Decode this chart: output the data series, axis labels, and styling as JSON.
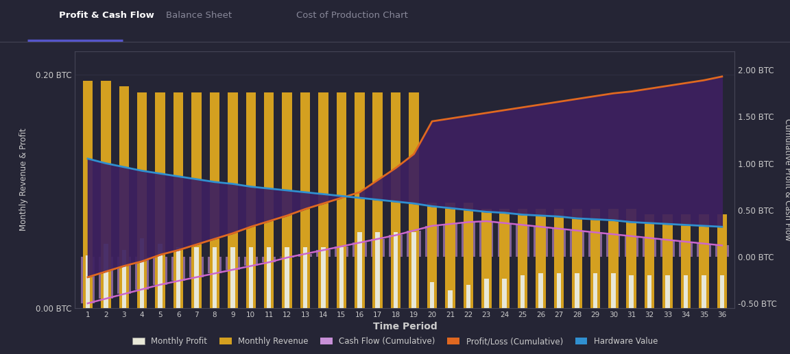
{
  "background_color": "#252535",
  "plot_bg_color": "#252535",
  "title_tabs": [
    "Profit & Cash Flow",
    "Balance Sheet",
    "Cost of Production Chart"
  ],
  "xlabel": "Time Period",
  "ylabel_left": "Monthly Revenue & Profit",
  "ylabel_right": "Cumulative Profit & Cash Flow",
  "periods": [
    1,
    2,
    3,
    4,
    5,
    6,
    7,
    8,
    9,
    10,
    11,
    12,
    13,
    14,
    15,
    16,
    17,
    18,
    19,
    20,
    21,
    22,
    23,
    24,
    25,
    26,
    27,
    28,
    29,
    30,
    31,
    32,
    33,
    34,
    35,
    36
  ],
  "ylim_left": [
    0.0,
    0.22
  ],
  "ylim_right": [
    -0.55,
    2.2
  ],
  "yticks_left": [
    0.0,
    0.2
  ],
  "yticks_right": [
    -0.5,
    0.0,
    0.5,
    1.0,
    1.5,
    2.0
  ],
  "monthly_revenue": [
    0.195,
    0.195,
    0.19,
    0.185,
    0.185,
    0.185,
    0.185,
    0.185,
    0.185,
    0.185,
    0.185,
    0.185,
    0.185,
    0.185,
    0.185,
    0.185,
    0.185,
    0.185,
    0.185,
    0.09,
    0.09,
    0.09,
    0.085,
    0.085,
    0.085,
    0.085,
    0.085,
    0.085,
    0.085,
    0.085,
    0.085,
    0.08,
    0.08,
    0.08,
    0.08,
    0.08
  ],
  "monthly_profit": [
    0.045,
    0.055,
    0.05,
    0.06,
    0.055,
    0.052,
    0.052,
    0.052,
    0.052,
    0.052,
    0.052,
    0.052,
    0.052,
    0.052,
    0.052,
    0.065,
    0.065,
    0.065,
    0.065,
    0.022,
    0.015,
    0.02,
    0.025,
    0.025,
    0.028,
    0.03,
    0.03,
    0.03,
    0.03,
    0.03,
    0.028,
    0.028,
    0.028,
    0.028,
    0.028,
    0.028
  ],
  "cash_flow_cumulative": [
    -0.5,
    -0.45,
    -0.4,
    -0.35,
    -0.3,
    -0.26,
    -0.22,
    -0.18,
    -0.14,
    -0.1,
    -0.06,
    -0.01,
    0.03,
    0.07,
    0.11,
    0.15,
    0.19,
    0.23,
    0.28,
    0.33,
    0.35,
    0.37,
    0.38,
    0.36,
    0.34,
    0.32,
    0.3,
    0.28,
    0.26,
    0.24,
    0.22,
    0.2,
    0.18,
    0.16,
    0.14,
    0.12
  ],
  "profit_loss_cumulative": [
    -0.22,
    -0.16,
    -0.1,
    -0.05,
    0.02,
    0.07,
    0.13,
    0.19,
    0.25,
    0.32,
    0.38,
    0.44,
    0.51,
    0.57,
    0.63,
    0.69,
    0.82,
    0.95,
    1.1,
    1.45,
    1.48,
    1.51,
    1.54,
    1.57,
    1.6,
    1.63,
    1.66,
    1.69,
    1.72,
    1.75,
    1.77,
    1.8,
    1.83,
    1.86,
    1.89,
    1.93
  ],
  "hardware_value": [
    1.05,
    1.0,
    0.96,
    0.92,
    0.89,
    0.86,
    0.83,
    0.8,
    0.78,
    0.75,
    0.73,
    0.71,
    0.69,
    0.67,
    0.65,
    0.63,
    0.61,
    0.59,
    0.57,
    0.54,
    0.52,
    0.5,
    0.48,
    0.47,
    0.45,
    0.44,
    0.43,
    0.41,
    0.4,
    0.39,
    0.37,
    0.36,
    0.35,
    0.34,
    0.33,
    0.32
  ],
  "color_monthly_revenue": "#d4a020",
  "color_monthly_profit": "#e8e8d8",
  "color_cash_flow_bar": "#c890d8",
  "color_cash_flow_line": "#cc66cc",
  "color_profit_loss": "#e06820",
  "color_hardware": "#3090d0",
  "color_profit_loss_fill": "#3d2060",
  "color_grid": "#3a3a50",
  "color_text": "#cccccc",
  "color_tab_active": "#ffffff",
  "color_tab_inactive": "#888899",
  "color_tab_line": "#5555cc",
  "color_sep_line": "#444455"
}
